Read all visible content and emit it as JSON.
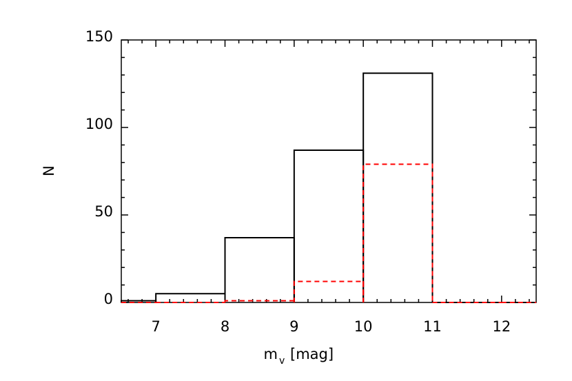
{
  "chart_data": {
    "type": "histogram",
    "xlabel": {
      "text": "m",
      "subscript": "v",
      "unit": "[mag]"
    },
    "ylabel": "N",
    "bins": [
      6.5,
      7,
      8,
      9,
      10,
      11,
      12,
      12.5
    ],
    "series": [
      {
        "color": "#000000",
        "dash": false,
        "values": [
          1,
          5,
          37,
          87,
          131,
          0,
          0
        ]
      },
      {
        "color": "#ff0000",
        "dash": true,
        "values": [
          0,
          0,
          1,
          12,
          79,
          0,
          0
        ]
      }
    ],
    "xlim": [
      6.5,
      12.5
    ],
    "xticks": [
      7,
      8,
      9,
      10,
      11,
      12
    ],
    "xminorticks": [
      6.6,
      6.8,
      7.2,
      7.4,
      7.6,
      7.8,
      8.2,
      8.4,
      8.6,
      8.8,
      9.2,
      9.4,
      9.6,
      9.8,
      10.2,
      10.4,
      10.6,
      10.8,
      11.2,
      11.4,
      11.6,
      11.8,
      12.2,
      12.4
    ],
    "ylim": [
      0,
      150
    ],
    "yticks": [
      0,
      50,
      100,
      150
    ],
    "yminorticks": [
      10,
      20,
      30,
      40,
      60,
      70,
      80,
      90,
      110,
      120,
      130,
      140
    ]
  }
}
